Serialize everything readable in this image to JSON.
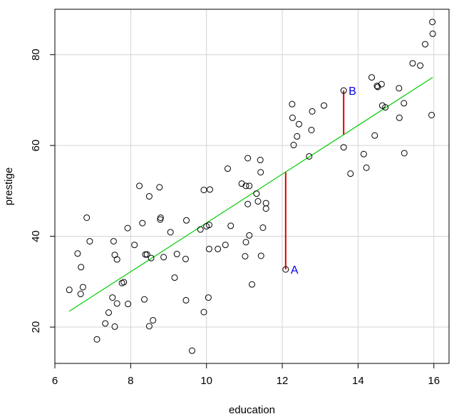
{
  "chart_data": {
    "type": "scatter",
    "xlabel": "education",
    "ylabel": "prestige",
    "xlim": [
      6,
      16.4
    ],
    "ylim": [
      12,
      90
    ],
    "x_ticks": [
      6,
      8,
      10,
      12,
      14,
      16
    ],
    "y_ticks": [
      20,
      40,
      60,
      80
    ],
    "grid": true,
    "points": [
      [
        6.38,
        28.2
      ],
      [
        6.6,
        36.2
      ],
      [
        6.68,
        27.3
      ],
      [
        6.69,
        33.2
      ],
      [
        6.74,
        28.8
      ],
      [
        6.84,
        44.1
      ],
      [
        6.92,
        38.9
      ],
      [
        7.11,
        17.3
      ],
      [
        7.33,
        20.8
      ],
      [
        7.42,
        23.2
      ],
      [
        7.52,
        26.5
      ],
      [
        7.55,
        38.9
      ],
      [
        7.58,
        20.1
      ],
      [
        7.58,
        35.9
      ],
      [
        7.64,
        25.2
      ],
      [
        7.64,
        34.9
      ],
      [
        7.77,
        29.7
      ],
      [
        7.82,
        29.9
      ],
      [
        7.92,
        41.8
      ],
      [
        7.93,
        25.1
      ],
      [
        8.1,
        38.1
      ],
      [
        8.23,
        51.1
      ],
      [
        8.31,
        42.9
      ],
      [
        8.36,
        26.1
      ],
      [
        8.39,
        36.0
      ],
      [
        8.43,
        36.0
      ],
      [
        8.49,
        48.8
      ],
      [
        8.49,
        20.2
      ],
      [
        8.54,
        35.2
      ],
      [
        8.59,
        21.5
      ],
      [
        8.76,
        50.8
      ],
      [
        8.78,
        43.7
      ],
      [
        8.79,
        44.1
      ],
      [
        8.87,
        35.4
      ],
      [
        9.05,
        40.9
      ],
      [
        9.16,
        30.9
      ],
      [
        9.22,
        36.1
      ],
      [
        9.45,
        35.0
      ],
      [
        9.46,
        25.9
      ],
      [
        9.47,
        43.5
      ],
      [
        9.62,
        14.8
      ],
      [
        9.84,
        41.5
      ],
      [
        9.93,
        50.2
      ],
      [
        9.93,
        23.3
      ],
      [
        10.0,
        42.2
      ],
      [
        10.05,
        26.5
      ],
      [
        10.07,
        42.5
      ],
      [
        10.07,
        37.2
      ],
      [
        10.09,
        50.3
      ],
      [
        10.3,
        37.2
      ],
      [
        10.5,
        38.1
      ],
      [
        10.56,
        54.9
      ],
      [
        10.64,
        42.3
      ],
      [
        10.93,
        51.6
      ],
      [
        11.02,
        35.6
      ],
      [
        11.04,
        38.7
      ],
      [
        11.04,
        51.1
      ],
      [
        11.09,
        57.2
      ],
      [
        11.09,
        47.1
      ],
      [
        11.13,
        51.1
      ],
      [
        11.13,
        40.2
      ],
      [
        11.2,
        29.4
      ],
      [
        11.32,
        49.4
      ],
      [
        11.36,
        47.7
      ],
      [
        11.42,
        56.8
      ],
      [
        11.43,
        54.1
      ],
      [
        11.44,
        35.7
      ],
      [
        11.49,
        41.9
      ],
      [
        11.57,
        47.3
      ],
      [
        11.57,
        46.1
      ],
      [
        12.09,
        32.7
      ],
      [
        12.26,
        69.1
      ],
      [
        12.27,
        66.1
      ],
      [
        12.3,
        60.1
      ],
      [
        12.39,
        62.0
      ],
      [
        12.44,
        64.7
      ],
      [
        12.71,
        57.6
      ],
      [
        12.77,
        63.4
      ],
      [
        12.79,
        67.5
      ],
      [
        13.1,
        68.8
      ],
      [
        13.62,
        72.1
      ],
      [
        13.62,
        59.6
      ],
      [
        13.8,
        53.8
      ],
      [
        14.15,
        58.1
      ],
      [
        14.22,
        55.1
      ],
      [
        14.36,
        75.0
      ],
      [
        14.44,
        62.2
      ],
      [
        14.5,
        73.1
      ],
      [
        14.52,
        72.9
      ],
      [
        14.62,
        73.5
      ],
      [
        14.64,
        68.8
      ],
      [
        14.72,
        68.4
      ],
      [
        15.08,
        72.6
      ],
      [
        15.09,
        66.1
      ],
      [
        15.21,
        69.3
      ],
      [
        15.22,
        58.3
      ],
      [
        15.44,
        78.1
      ],
      [
        15.64,
        77.6
      ],
      [
        15.77,
        82.3
      ],
      [
        15.94,
        66.7
      ],
      [
        15.96,
        87.2
      ],
      [
        15.97,
        84.6
      ]
    ],
    "fit_line": {
      "x": [
        6.38,
        15.97
      ],
      "y": [
        23.5,
        75.0
      ]
    },
    "residuals": [
      {
        "label": "A",
        "x": 12.09,
        "y": 32.7,
        "fitted": 54.1
      },
      {
        "label": "B",
        "x": 13.62,
        "y": 72.1,
        "fitted": 62.4
      }
    ],
    "colors": {
      "points": "#000000",
      "fit_line": "#00cc00",
      "residual": "#e00000",
      "label": "#0000ee",
      "grid": "#d3d3d3"
    }
  }
}
